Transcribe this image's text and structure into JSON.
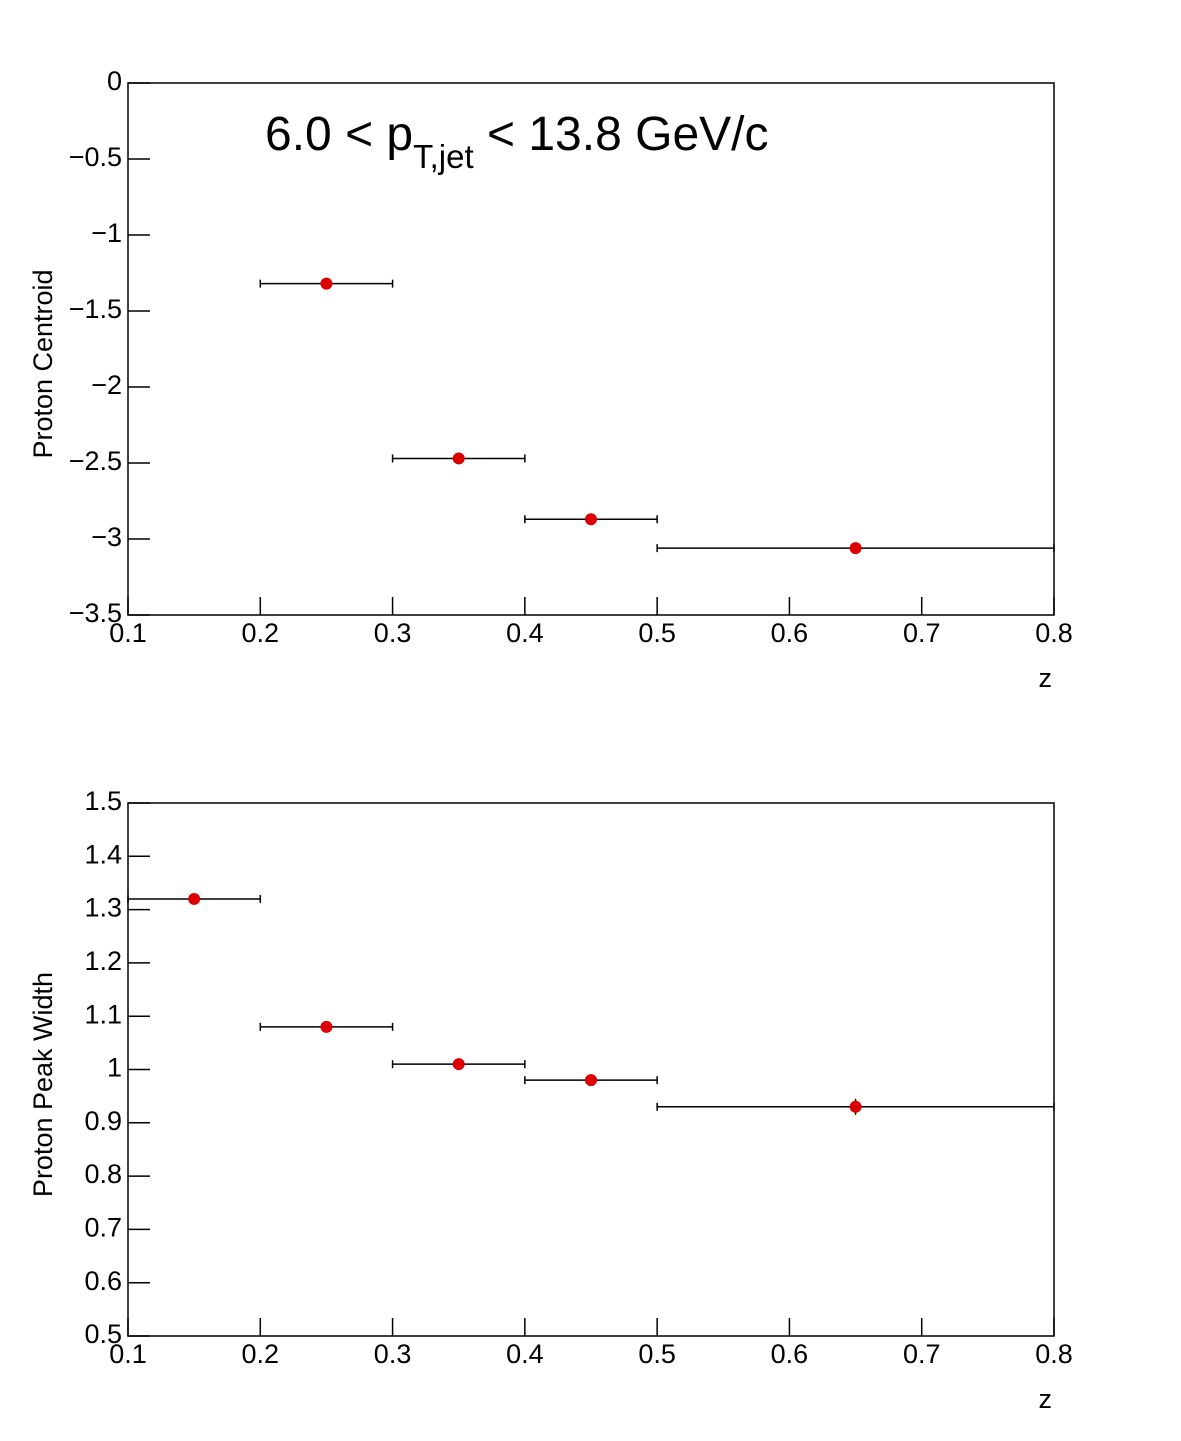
{
  "chart_data": [
    {
      "type": "errorbar",
      "annotation": [
        "6.0 < p",
        "T,jet",
        " < 13.8 GeV/c"
      ],
      "xlabel": "z",
      "ylabel": "Proton Centroid",
      "xlim": [
        0.1,
        0.8
      ],
      "xticks": [
        0.1,
        0.2,
        0.3,
        0.4,
        0.5,
        0.6,
        0.7,
        0.8
      ],
      "ylim": [
        -3.5,
        0
      ],
      "yticks": [
        {
          "value": -3.5,
          "label": "−3.5"
        },
        {
          "value": -3,
          "label": "−3"
        },
        {
          "value": -2.5,
          "label": "−2.5"
        },
        {
          "value": -2,
          "label": "−2"
        },
        {
          "value": -1.5,
          "label": "−1.5"
        },
        {
          "value": -1,
          "label": "−1"
        },
        {
          "value": -0.5,
          "label": "−0.5"
        },
        0
      ],
      "series": [
        {
          "color": "#dd0000",
          "x": [
            0.25,
            0.35,
            0.45,
            0.65
          ],
          "xerr": [
            0.05,
            0.05,
            0.05,
            0.15
          ],
          "values": [
            -1.32,
            -2.47,
            -2.87,
            -3.06
          ],
          "yerr": [
            0.01,
            0.01,
            0.01,
            0.01
          ]
        }
      ]
    },
    {
      "type": "errorbar",
      "xlabel": "z",
      "ylabel": "Proton Peak Width",
      "xlim": [
        0.1,
        0.8
      ],
      "xticks": [
        0.1,
        0.2,
        0.3,
        0.4,
        0.5,
        0.6,
        0.7,
        0.8
      ],
      "ylim": [
        0.5,
        1.5
      ],
      "yticks": [
        0.5,
        0.6,
        0.7,
        0.8,
        0.9,
        1,
        1.1,
        1.2,
        1.3,
        1.4,
        1.5
      ],
      "series": [
        {
          "color": "#dd0000",
          "x": [
            0.15,
            0.25,
            0.35,
            0.45,
            0.65
          ],
          "xerr": [
            0.05,
            0.05,
            0.05,
            0.05,
            0.15
          ],
          "values": [
            1.32,
            1.08,
            1.01,
            0.98,
            0.93
          ],
          "yerr": [
            0.003,
            0.003,
            0.003,
            0.004,
            0.015
          ]
        }
      ]
    }
  ]
}
